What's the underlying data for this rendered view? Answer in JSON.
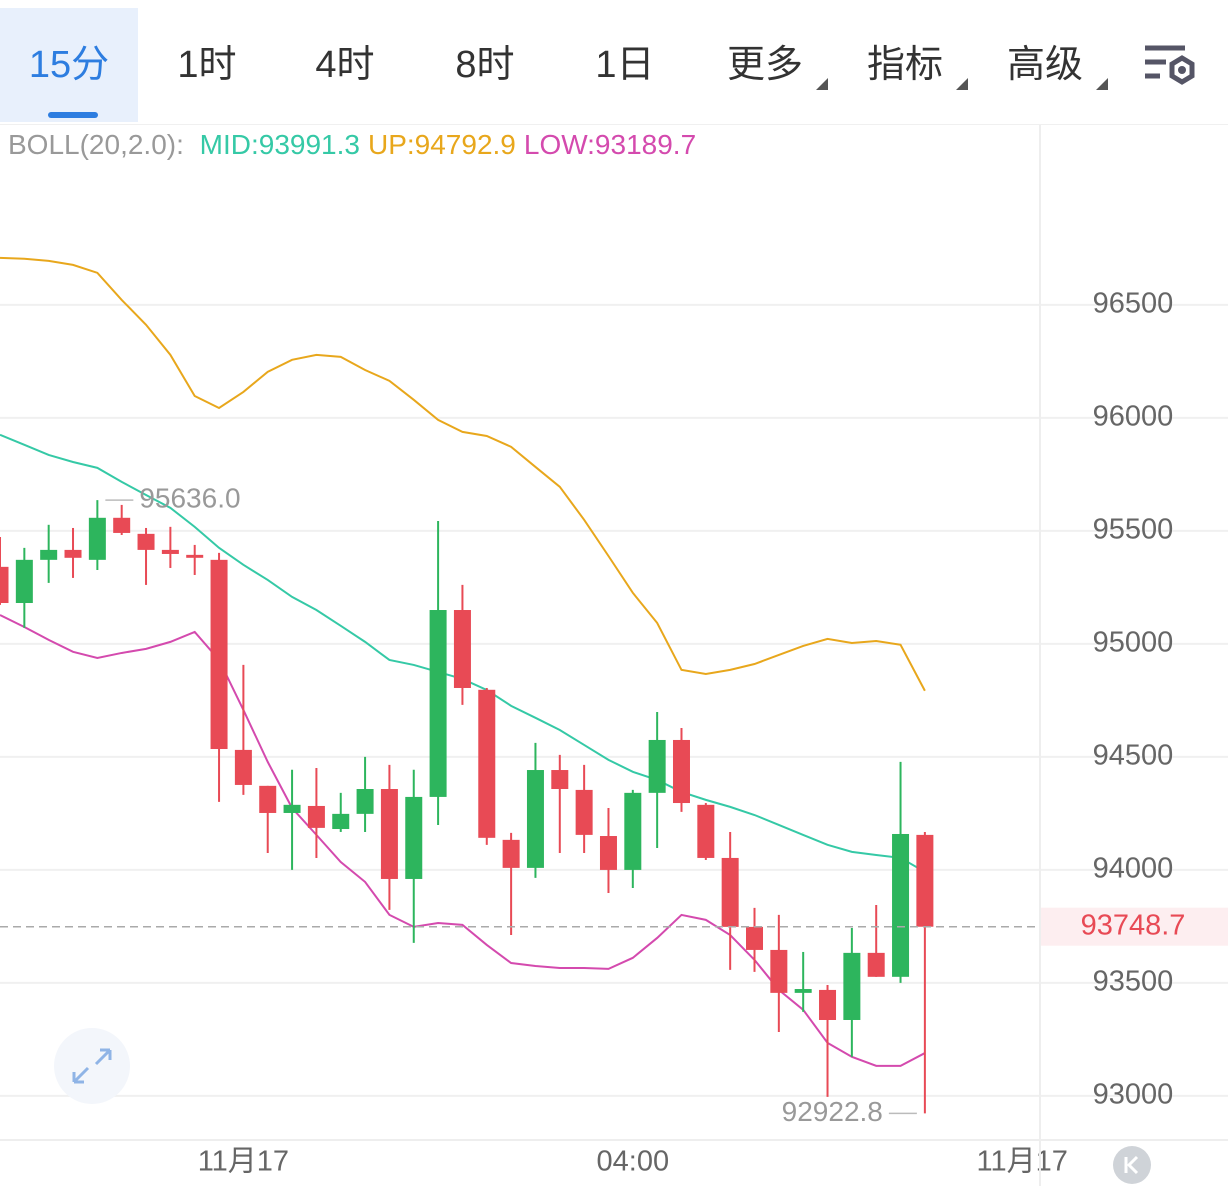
{
  "tabs": {
    "items": [
      "15分",
      "1时",
      "4时",
      "8时",
      "1日",
      "更多",
      "指标",
      "高级"
    ],
    "active": 0
  },
  "chart_data": {
    "type": "candlestick",
    "indicator_label": "BOLL(20,2.0):",
    "x": [
      0,
      1,
      2,
      3,
      4,
      5,
      6,
      7,
      8,
      9,
      10,
      11,
      12,
      13,
      14,
      15,
      16,
      17,
      18,
      19,
      20,
      21,
      22,
      23,
      24,
      25,
      26,
      27,
      28,
      29,
      30,
      31,
      32,
      33,
      34,
      35,
      36,
      37,
      38
    ],
    "open": [
      95341,
      95181,
      95372,
      95416,
      95372,
      95558,
      95487,
      95416,
      95394,
      95372,
      94531,
      94372,
      94252,
      94283,
      94181,
      94248,
      94358,
      93960,
      94323,
      95150,
      94797,
      94133,
      94009,
      94442,
      94354,
      94150,
      94000,
      94341,
      94575,
      94288,
      94053,
      93748,
      93646,
      93456,
      93469,
      93336,
      93633,
      93527,
      94155
    ],
    "high": [
      95473,
      95425,
      95527,
      95513,
      95636.0,
      95615,
      95513,
      95518,
      95438,
      95403,
      94907,
      94372,
      94443,
      94451,
      94341,
      94500,
      94465,
      94443,
      95544,
      95261,
      94805,
      94164,
      94562,
      94509,
      94465,
      94274,
      94354,
      94699,
      94628,
      94296,
      94168,
      93832,
      93801,
      93637,
      93491,
      93743,
      93845,
      94478,
      94168
    ],
    "low": [
      95173,
      95071,
      95270,
      95292,
      95327,
      95482,
      95261,
      95336,
      95305,
      94301,
      94332,
      94075,
      94000,
      94053,
      94168,
      94168,
      93823,
      93677,
      94199,
      94730,
      94111,
      93712,
      93965,
      94075,
      94075,
      93898,
      93920,
      94097,
      94257,
      94044,
      93558,
      93549,
      93283,
      93372,
      92996,
      93173,
      93527,
      93500,
      92922.8
    ],
    "close": [
      95181,
      95372,
      95416,
      95381,
      95558,
      95491,
      95416,
      95398,
      95381,
      94535,
      94376,
      94252,
      94288,
      94186,
      94248,
      94358,
      93960,
      94323,
      95150,
      94805,
      94142,
      94009,
      94442,
      94358,
      94155,
      94000,
      94341,
      94575,
      94296,
      94053,
      93748,
      93646,
      93456,
      93473,
      93336,
      93633,
      93527,
      94159,
      93748.7
    ],
    "up_color": "#2db55d",
    "down_color": "#e84a55",
    "series": [
      {
        "name": "MID:93991.3",
        "color": "#35c9a6",
        "values": [
          95925,
          95881,
          95836,
          95805,
          95779,
          95717,
          95659,
          95602,
          95518,
          95425,
          95350,
          95283,
          95208,
          95150,
          95080,
          95009,
          94929,
          94907,
          94876,
          94845,
          94796,
          94726,
          94673,
          94619,
          94553,
          94487,
          94434,
          94398,
          94345,
          94310,
          94279,
          94243,
          94199,
          94155,
          94111,
          94080,
          94066,
          94053,
          93991.3
        ]
      },
      {
        "name": "UP:94792.9",
        "color": "#e8a71c",
        "values": [
          96708,
          96704,
          96695,
          96677,
          96642,
          96522,
          96412,
          96279,
          96097,
          96044,
          96115,
          96204,
          96257,
          96279,
          96270,
          96212,
          96164,
          96080,
          95991,
          95938,
          95920,
          95872,
          95783,
          95695,
          95549,
          95389,
          95226,
          95093,
          94885,
          94867,
          94885,
          94911,
          94951,
          94991,
          95022,
          95004,
          95013,
          94996,
          94792.9
        ]
      },
      {
        "name": "LOW:93189.7",
        "color": "#d44aae",
        "values": [
          95128,
          95075,
          95018,
          94965,
          94938,
          94960,
          94978,
          95009,
          95053,
          94929,
          94708,
          94478,
          94274,
          94155,
          94035,
          93947,
          93801,
          93748,
          93765,
          93757,
          93668,
          93588,
          93575,
          93566,
          93566,
          93562,
          93611,
          93699,
          93801,
          93779,
          93712,
          93602,
          93469,
          93381,
          93235,
          93173,
          93133,
          93133,
          93189.7
        ]
      }
    ],
    "last_price": 93748.7,
    "max_mark": {
      "x": 4,
      "value": 95636.0,
      "label": "95636.0"
    },
    "min_mark": {
      "x": 38,
      "value": 92922.8
    },
    "xlim": [
      0,
      42.73
    ],
    "xticks": [
      {
        "value": 10,
        "label": "11月17"
      },
      {
        "value": 26,
        "label": "04:00"
      },
      {
        "value": 42,
        "label": "11月17"
      }
    ],
    "ylim": [
      92805,
      97296
    ],
    "yticks": [
      93000,
      93500,
      94000,
      94500,
      95000,
      95500,
      96000,
      96500
    ],
    "grid": true
  }
}
